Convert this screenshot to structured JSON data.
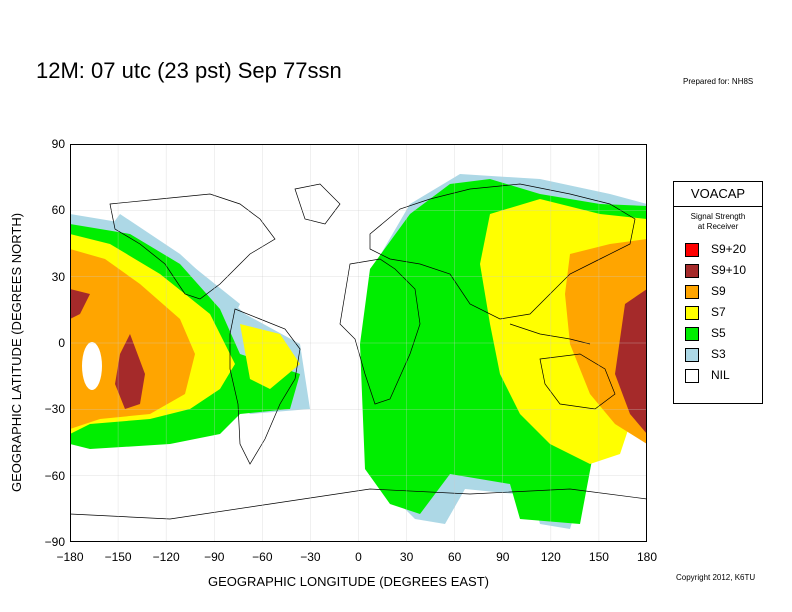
{
  "header": {
    "title": "12M:  07 utc (23 pst) Sep 77ssn",
    "prepared": "Prepared for: NH8S"
  },
  "footer": {
    "copyright": "Copyright 2012, K6TU"
  },
  "axes": {
    "xlabel": "GEOGRAPHIC LONGITUDE (DEGREES EAST)",
    "ylabel": "GEOGRAPHIC LATITUDE (DEGREES NORTH)",
    "xticks": [
      "−180",
      "−150",
      "−120",
      "−90",
      "−60",
      "−30",
      "0",
      "30",
      "60",
      "90",
      "120",
      "150",
      "180"
    ],
    "yticks": [
      "90",
      "60",
      "30",
      "0",
      "−30",
      "−60",
      "−90"
    ],
    "xlim": [
      -180,
      180
    ],
    "ylim": [
      -90,
      90
    ]
  },
  "legend": {
    "title": "VOACAP",
    "subtitle_line1": "Signal Strength",
    "subtitle_line2": "at Receiver",
    "items": [
      {
        "label": "S9+20",
        "color": "#ff0000"
      },
      {
        "label": "S9+10",
        "color": "#a52a2a"
      },
      {
        "label": "S9",
        "color": "#ffa500"
      },
      {
        "label": "S7",
        "color": "#ffff00"
      },
      {
        "label": "S5",
        "color": "#00ee00"
      },
      {
        "label": "S3",
        "color": "#add8e6"
      },
      {
        "label": "NIL",
        "color": "#ffffff"
      }
    ]
  }
}
